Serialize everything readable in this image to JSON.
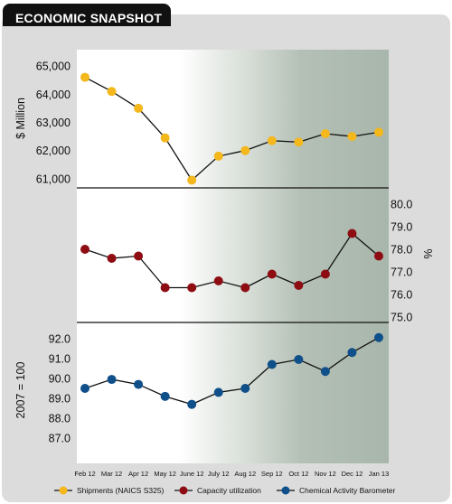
{
  "header": {
    "title": "ECONOMIC SNAPSHOT"
  },
  "colors": {
    "shipments": "#f4b71c",
    "capacity": "#8e0d13",
    "barometer": "#0f4f8a",
    "line": "#111111",
    "frame": "#dcdcdc"
  },
  "chart_data": [
    {
      "type": "line",
      "x": [
        "Feb 12",
        "Mar 12",
        "Apr 12",
        "May 12",
        "June 12",
        "July 12",
        "Aug 12",
        "Sep 12",
        "Oct 12",
        "Nov 12",
        "Dec 12",
        "Jan 13"
      ],
      "series": [
        {
          "name": "Shipments (NAICS S325)",
          "values": [
            64600,
            64100,
            63500,
            62450,
            60950,
            61800,
            62000,
            62350,
            62300,
            62600,
            62500,
            62650
          ]
        }
      ],
      "ylabel": "$ Million",
      "yticks": [
        "61,000",
        "62,000",
        "63,000",
        "64,000",
        "65,000"
      ],
      "ylim": [
        60900,
        65100
      ]
    },
    {
      "type": "line",
      "x": [
        "Feb 12",
        "Mar 12",
        "Apr 12",
        "May 12",
        "June 12",
        "July 12",
        "Aug 12",
        "Sep 12",
        "Oct 12",
        "Nov 12",
        "Dec 12",
        "Jan 13"
      ],
      "series": [
        {
          "name": "Capacity utilization",
          "values": [
            78.0,
            77.6,
            77.7,
            76.3,
            76.3,
            76.6,
            76.3,
            76.9,
            76.4,
            76.9,
            78.7,
            77.7
          ]
        }
      ],
      "ylabel": "%",
      "yticks": [
        "75.0",
        "76.0",
        "77.0",
        "78.0",
        "79.0",
        "80.0"
      ],
      "ylim": [
        75.0,
        80.0
      ]
    },
    {
      "type": "line",
      "x": [
        "Feb 12",
        "Mar 12",
        "Apr 12",
        "May 12",
        "June 12",
        "July 12",
        "Aug 12",
        "Sep 12",
        "Oct 12",
        "Nov 12",
        "Dec 12",
        "Jan 13"
      ],
      "series": [
        {
          "name": "Chemical Activity Barometer",
          "values": [
            89.5,
            89.95,
            89.7,
            89.1,
            88.7,
            89.3,
            89.5,
            90.7,
            90.95,
            90.35,
            91.3,
            92.05
          ]
        }
      ],
      "ylabel": "2007 = 100",
      "yticks": [
        "87.0",
        "88.0",
        "89.0",
        "90.0",
        "91.0",
        "92.0"
      ],
      "ylim": [
        86.6,
        92.4
      ]
    }
  ]
}
